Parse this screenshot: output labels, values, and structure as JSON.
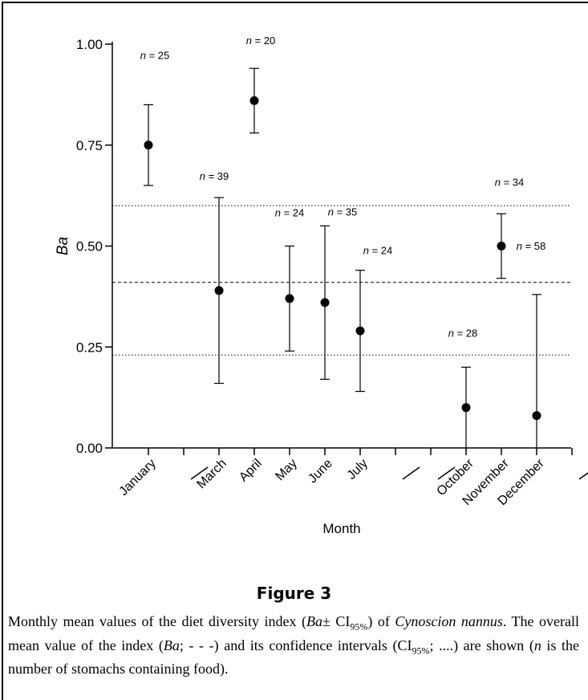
{
  "chart_data": {
    "type": "scatter",
    "xlabel": "Month",
    "ylabel": "Ba",
    "ylim": [
      0,
      1.0
    ],
    "yticks": [
      "0.00",
      "0.25",
      "0.50",
      "0.75",
      "1.00"
    ],
    "categories": [
      "January",
      "—",
      "March",
      "April",
      "May",
      "June",
      "July",
      "—",
      "—",
      "October",
      "November",
      "December",
      "—"
    ],
    "points": [
      {
        "month": "January",
        "mean": 0.75,
        "lower": 0.65,
        "upper": 0.85,
        "n": "n = 25"
      },
      {
        "month": "March",
        "mean": 0.39,
        "lower": 0.16,
        "upper": 0.62,
        "n": "n = 39"
      },
      {
        "month": "April",
        "mean": 0.86,
        "lower": 0.78,
        "upper": 0.94,
        "n": "n = 20"
      },
      {
        "month": "May",
        "mean": 0.37,
        "lower": 0.24,
        "upper": 0.5,
        "n": "n = 24"
      },
      {
        "month": "June",
        "mean": 0.36,
        "lower": 0.17,
        "upper": 0.55,
        "n": "n = 35"
      },
      {
        "month": "July",
        "mean": 0.29,
        "lower": 0.14,
        "upper": 0.44,
        "n": "n = 24"
      },
      {
        "month": "October",
        "mean": 0.1,
        "lower": 0.0,
        "upper": 0.2,
        "n": "n = 28"
      },
      {
        "month": "November",
        "mean": 0.5,
        "lower": 0.42,
        "upper": 0.58,
        "n": "n = 34"
      },
      {
        "month": "December",
        "mean": 0.08,
        "lower": 0.0,
        "upper": 0.38,
        "n": "n = 58"
      }
    ],
    "overall_mean": 0.41,
    "overall_ci": [
      0.23,
      0.6
    ]
  },
  "figure": {
    "title": "Figure 3",
    "caption": {
      "p1": "Monthly mean values of the diet diversity index (",
      "ba1": "Ba",
      "p2": "± CI",
      "sub1": "95%",
      "p3": ") of ",
      "species": "Cynoscion nannus",
      "p4": ". The overall mean value of the index (",
      "ba2": "Ba",
      "p5": "; - - -) and its confidence intervals (CI",
      "sub2": "95%",
      "p6": "; ....) are shown (",
      "n": "n",
      "p7": " is the number of stomachs containing food)."
    }
  }
}
